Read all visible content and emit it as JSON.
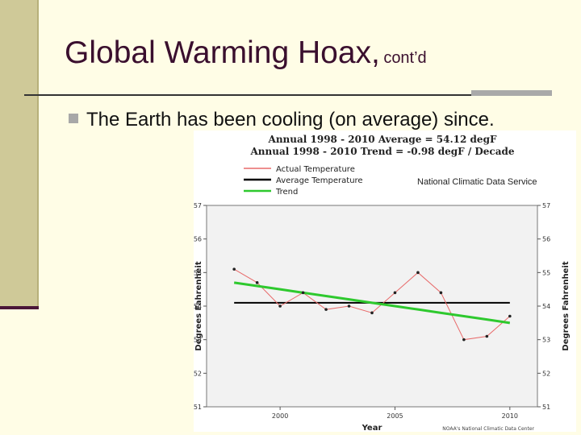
{
  "slide": {
    "title_main": "Global Warming Hoax,",
    "title_sub": "cont’d",
    "bullet_text": "The Earth has been cooling (on average) since.",
    "source_label": "National Climatic Data Service"
  },
  "colors": {
    "actual": "#e86a6a",
    "average": "#000000",
    "trend": "#2ec92e",
    "plot_bg": "#f2f2f2"
  },
  "chart_data": {
    "type": "line",
    "title": "Annual 1998 - 2010 Average = 54.12 degF",
    "subtitle": "Annual 1998 - 2010 Trend = -0.98 degF / Decade",
    "xlabel": "Year",
    "ylabel": "Degrees Fahrenheit",
    "ylabel_right": "Degrees Fahrenheit",
    "x": [
      1998,
      1999,
      2000,
      2001,
      2002,
      2003,
      2004,
      2005,
      2006,
      2007,
      2008,
      2009,
      2010
    ],
    "xlim": [
      1996.8,
      2011.2
    ],
    "ylim": [
      51,
      57
    ],
    "xticks": [
      2000,
      2005,
      2010
    ],
    "yticks": [
      51,
      52,
      53,
      54,
      55,
      56,
      57
    ],
    "series": [
      {
        "name": "Actual Temperature",
        "values": [
          55.1,
          54.7,
          54.0,
          54.4,
          53.9,
          54.0,
          53.8,
          54.4,
          55.0,
          54.4,
          53.0,
          53.1,
          53.7
        ]
      },
      {
        "name": "Average Temperature",
        "values": [
          54.1,
          54.1,
          54.1,
          54.1,
          54.1,
          54.1,
          54.1,
          54.1,
          54.1,
          54.1,
          54.1,
          54.1,
          54.1
        ]
      },
      {
        "name": "Trend",
        "values": [
          54.7,
          54.6,
          54.5,
          54.4,
          54.3,
          54.2,
          54.1,
          54.0,
          53.9,
          53.8,
          53.7,
          53.6,
          53.5
        ]
      }
    ],
    "legend_position": "top-left",
    "footer": "NOAA's National Climatic Data Center"
  }
}
